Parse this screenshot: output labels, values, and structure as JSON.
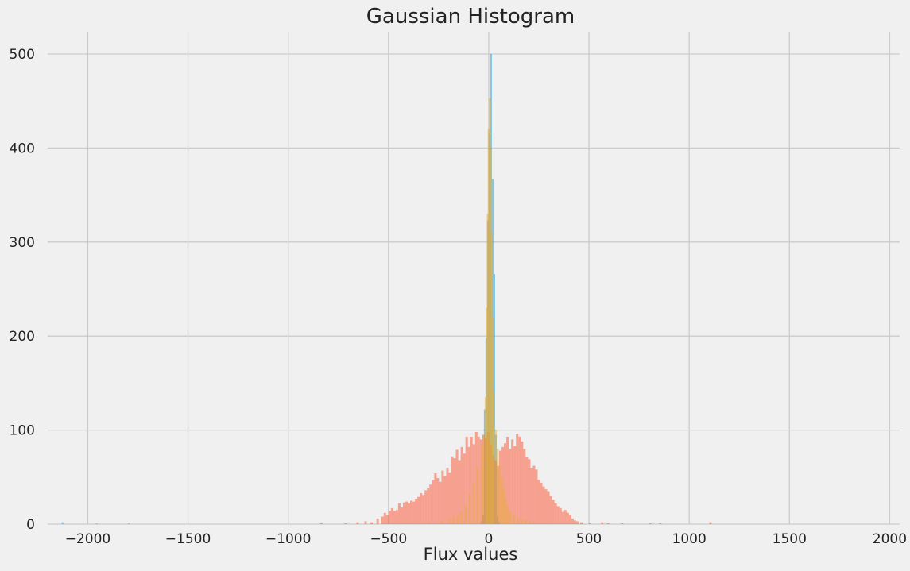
{
  "chart_data": {
    "type": "bar",
    "title": "Gaussian Histogram",
    "xlabel": "Flux values",
    "ylabel": "",
    "xlim": [
      -2200,
      2050
    ],
    "ylim": [
      0,
      525
    ],
    "xticks": [
      -2000,
      -1500,
      -1000,
      -500,
      0,
      500,
      1000,
      1500,
      2000
    ],
    "xtick_labels": [
      "−2000",
      "−1500",
      "−1000",
      "−500",
      "0",
      "500",
      "1000",
      "1500",
      "2000"
    ],
    "yticks": [
      0,
      100,
      200,
      300,
      400,
      500
    ],
    "ytick_labels": [
      "0",
      "100",
      "200",
      "300",
      "400",
      "500"
    ],
    "grid": true,
    "style": "fivethirtyeight",
    "series": [
      {
        "color": "#30a2da",
        "alpha": 0.55,
        "bin_width": 8,
        "bins": [
          [
            -2130,
            2
          ],
          [
            -1960,
            1
          ],
          [
            -1800,
            1
          ],
          [
            -40,
            3
          ],
          [
            -32,
            10
          ],
          [
            -24,
            122
          ],
          [
            -16,
            198
          ],
          [
            -8,
            323
          ],
          [
            0,
            415
          ],
          [
            8,
            500
          ],
          [
            16,
            367
          ],
          [
            24,
            266
          ],
          [
            32,
            95
          ],
          [
            40,
            8
          ],
          [
            48,
            2
          ]
        ]
      },
      {
        "color": "#fc4f30",
        "alpha": 0.5,
        "bin_width": 12,
        "bins": [
          [
            -840,
            1
          ],
          [
            -720,
            1
          ],
          [
            -660,
            2
          ],
          [
            -620,
            3
          ],
          [
            -590,
            2
          ],
          [
            -560,
            6
          ],
          [
            -536,
            8
          ],
          [
            -524,
            12
          ],
          [
            -512,
            10
          ],
          [
            -500,
            14
          ],
          [
            -488,
            17
          ],
          [
            -476,
            14
          ],
          [
            -464,
            15
          ],
          [
            -452,
            22
          ],
          [
            -440,
            18
          ],
          [
            -428,
            23
          ],
          [
            -416,
            24
          ],
          [
            -404,
            22
          ],
          [
            -392,
            25
          ],
          [
            -380,
            24
          ],
          [
            -368,
            27
          ],
          [
            -356,
            29
          ],
          [
            -344,
            33
          ],
          [
            -332,
            31
          ],
          [
            -320,
            36
          ],
          [
            -308,
            38
          ],
          [
            -296,
            42
          ],
          [
            -284,
            47
          ],
          [
            -272,
            54
          ],
          [
            -260,
            49
          ],
          [
            -248,
            45
          ],
          [
            -236,
            57
          ],
          [
            -224,
            51
          ],
          [
            -212,
            60
          ],
          [
            -200,
            55
          ],
          [
            -188,
            72
          ],
          [
            -176,
            70
          ],
          [
            -164,
            79
          ],
          [
            -152,
            68
          ],
          [
            -140,
            82
          ],
          [
            -128,
            75
          ],
          [
            -116,
            93
          ],
          [
            -104,
            82
          ],
          [
            -92,
            93
          ],
          [
            -80,
            85
          ],
          [
            -68,
            98
          ],
          [
            -56,
            93
          ],
          [
            -44,
            90
          ],
          [
            -32,
            95
          ],
          [
            -20,
            92
          ],
          [
            -8,
            98
          ],
          [
            4,
            85
          ],
          [
            16,
            73
          ],
          [
            28,
            68
          ],
          [
            40,
            62
          ],
          [
            52,
            78
          ],
          [
            64,
            82
          ],
          [
            76,
            86
          ],
          [
            88,
            93
          ],
          [
            100,
            80
          ],
          [
            112,
            90
          ],
          [
            124,
            83
          ],
          [
            136,
            96
          ],
          [
            148,
            93
          ],
          [
            160,
            88
          ],
          [
            172,
            80
          ],
          [
            184,
            71
          ],
          [
            196,
            69
          ],
          [
            208,
            60
          ],
          [
            220,
            62
          ],
          [
            232,
            58
          ],
          [
            244,
            47
          ],
          [
            256,
            44
          ],
          [
            268,
            40
          ],
          [
            280,
            37
          ],
          [
            292,
            35
          ],
          [
            304,
            30
          ],
          [
            316,
            26
          ],
          [
            328,
            22
          ],
          [
            340,
            19
          ],
          [
            352,
            17
          ],
          [
            364,
            13
          ],
          [
            376,
            15
          ],
          [
            388,
            12
          ],
          [
            400,
            10
          ],
          [
            412,
            6
          ],
          [
            424,
            4
          ],
          [
            436,
            3
          ],
          [
            456,
            2
          ],
          [
            500,
            1
          ],
          [
            560,
            2
          ],
          [
            590,
            1
          ],
          [
            660,
            1
          ],
          [
            800,
            1
          ],
          [
            850,
            1
          ],
          [
            1100,
            2
          ]
        ]
      },
      {
        "color": "#e5ae38",
        "alpha": 0.5,
        "bin_width": 10,
        "bins": [
          [
            -300,
            2
          ],
          [
            -240,
            3
          ],
          [
            -200,
            5
          ],
          [
            -180,
            8
          ],
          [
            -160,
            10
          ],
          [
            -140,
            14
          ],
          [
            -120,
            20
          ],
          [
            -100,
            32
          ],
          [
            -80,
            45
          ],
          [
            -60,
            60
          ],
          [
            -40,
            85
          ],
          [
            -30,
            95
          ],
          [
            -20,
            135
          ],
          [
            -15,
            230
          ],
          [
            -10,
            330
          ],
          [
            -5,
            420
          ],
          [
            0,
            453
          ],
          [
            5,
            400
          ],
          [
            10,
            310
          ],
          [
            15,
            220
          ],
          [
            20,
            140
          ],
          [
            30,
            100
          ],
          [
            40,
            80
          ],
          [
            50,
            62
          ],
          [
            60,
            50
          ],
          [
            70,
            38
          ],
          [
            80,
            28
          ],
          [
            90,
            20
          ],
          [
            100,
            14
          ],
          [
            120,
            10
          ],
          [
            140,
            7
          ],
          [
            160,
            5
          ],
          [
            180,
            4
          ],
          [
            200,
            3
          ],
          [
            220,
            2
          ],
          [
            260,
            1
          ]
        ]
      }
    ]
  }
}
